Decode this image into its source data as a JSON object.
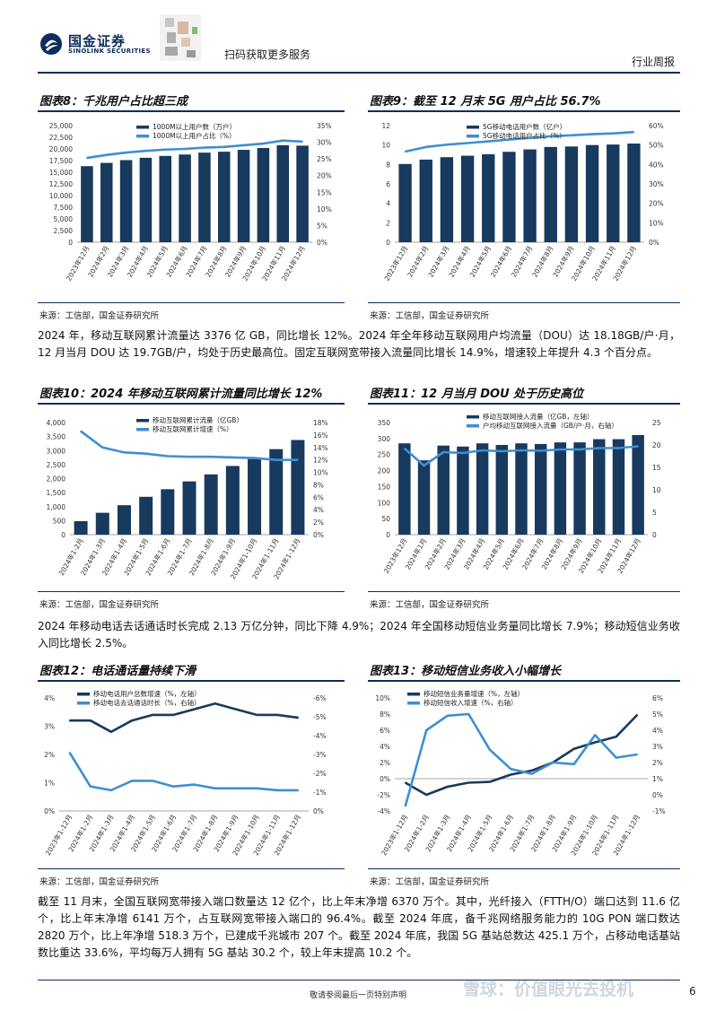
{
  "header": {
    "logo_cn": "国金证券",
    "logo_en": "SINOLINK SECURITIES",
    "qr_text": "扫码获取更多服务",
    "report_type": "行业周报"
  },
  "figures": {
    "fig8": {
      "title": "图表8：千兆用户占比超三成",
      "source": "来源：工信部，国金证券研究所"
    },
    "fig9": {
      "title": "图表9：截至 12 月末 5G 用户占比 56.7%",
      "source": "来源：工信部，国金证券研究所"
    },
    "fig10": {
      "title": "图表10：2024 年移动互联网累计流量同比增长 12%",
      "source": "来源：工信部，国金证券研究所"
    },
    "fig11": {
      "title": "图表11：12 月当月 DOU 处于历史高位",
      "source": "来源：工信部，国金证券研究所"
    },
    "fig12": {
      "title": "图表12：电话通话量持续下滑",
      "source": "来源：工信部，国金证券研究所"
    },
    "fig13": {
      "title": "图表13：移动短信业务收入小幅增长",
      "source": "来源：工信部，国金证券研究所"
    }
  },
  "paragraphs": {
    "p1": "2024 年，移动互联网累计流量达 3376 亿 GB，同比增长 12%。2024 年全年移动互联网用户均流量（DOU）达 18.18GB/户·月，12 月当月 DOU 达 19.7GB/户，均处于历史最高位。固定互联网宽带接入流量同比增长 14.9%，增速较上年提升 4.3 个百分点。",
    "p2": "2024 年移动电话去话通话时长完成 2.13 万亿分钟，同比下降 4.9%；2024 年全国移动短信业务量同比增长 7.9%；移动短信业务收入同比增长 2.5%。",
    "p3": "截至 11 月末，全国互联网宽带接入端口数量达 12 亿个，比上年末净增 6370 万个。其中，光纤接入（FTTH/O）端口达到 11.6 亿个，比上年末净增 6141 万个，占互联网宽带接入端口的 96.4%。截至 2024 年底，备千兆网络服务能力的 10G PON 端口数达 2820 万个，比上年净增 518.3 万个，已建成千兆城市 207 个。截至 2024 年底，我国 5G 基站总数达 425.1 万个，占移动电话基站数比重达 33.6%，平均每万人拥有 5G 基站 30.2 个，较上年末提高 10.2 个。"
  },
  "footer": {
    "disclaimer": "敬请参阅最后一页特别声明",
    "watermark": "雪球：价值眼光去投机",
    "page": "6"
  },
  "colors": {
    "navy": "#173a5e",
    "blue": "#3f8fd2",
    "rule": "#0d2d5c"
  },
  "chart_data": [
    {
      "id": "fig8",
      "type": "bar+line",
      "categories": [
        "2023年12月",
        "2024年2月",
        "2024年3月",
        "2024年4月",
        "2024年5月",
        "2024年6月",
        "2024年7月",
        "2024年8月",
        "2024年9月",
        "2024年10月",
        "2024年11月",
        "2024年12月"
      ],
      "series": [
        {
          "name": "1000M以上用户数（万户）",
          "type": "bar",
          "axis": "left",
          "values": [
            16300,
            17000,
            17600,
            18100,
            18500,
            18800,
            19200,
            19400,
            19800,
            20200,
            20800,
            20700
          ]
        },
        {
          "name": "1000M以上用户占比（%）",
          "type": "line",
          "axis": "right",
          "values": [
            25.3,
            26.2,
            26.9,
            27.4,
            27.8,
            28.0,
            28.4,
            28.6,
            29.1,
            29.6,
            30.5,
            30.2
          ]
        }
      ],
      "yleft": {
        "min": 0,
        "max": 25000,
        "ticks": [
          "0",
          "2,500",
          "5,000",
          "7,500",
          "10,000",
          "12,500",
          "15,000",
          "17,500",
          "20,000",
          "22,500",
          "25,000"
        ]
      },
      "yright": {
        "min": 0,
        "max": 35,
        "ticks": [
          "0%",
          "5%",
          "10%",
          "15%",
          "20%",
          "25%",
          "30%",
          "35%"
        ]
      }
    },
    {
      "id": "fig9",
      "type": "bar+line",
      "categories": [
        "2023年12月",
        "2024年2月",
        "2024年3月",
        "2024年4月",
        "2024年5月",
        "2024年6月",
        "2024年7月",
        "2024年8月",
        "2024年9月",
        "2024年10月",
        "2024年11月",
        "2024年12月"
      ],
      "series": [
        {
          "name": "5G移动电话用户数（亿户）",
          "type": "bar",
          "axis": "left",
          "values": [
            8.05,
            8.5,
            8.75,
            8.9,
            9.05,
            9.3,
            9.55,
            9.8,
            9.85,
            10.0,
            10.05,
            10.15
          ]
        },
        {
          "name": "5G移动电话用户占比（%）",
          "type": "line",
          "axis": "right",
          "values": [
            46.6,
            49.0,
            50.2,
            51.0,
            51.9,
            52.8,
            53.7,
            54.5,
            55.0,
            55.6,
            56.0,
            56.7
          ]
        }
      ],
      "yleft": {
        "min": 0,
        "max": 12,
        "ticks": [
          "0",
          "2",
          "4",
          "6",
          "8",
          "10",
          "12"
        ]
      },
      "yright": {
        "min": 0,
        "max": 60,
        "ticks": [
          "0%",
          "10%",
          "20%",
          "30%",
          "40%",
          "50%",
          "60%"
        ]
      }
    },
    {
      "id": "fig10",
      "type": "bar+line",
      "categories": [
        "2024年1-2月",
        "2024年1-3月",
        "2024年1-4月",
        "2024年1-5月",
        "2024年1-6月",
        "2024年1-7月",
        "2024年1-8月",
        "2024年1-9月",
        "2024年1-10月",
        "2024年1-11月",
        "2024年1-12月"
      ],
      "series": [
        {
          "name": "移动互联网累计流量（亿GB）",
          "type": "bar",
          "axis": "left",
          "values": [
            480,
            780,
            1050,
            1350,
            1620,
            1900,
            2150,
            2450,
            2700,
            3050,
            3376
          ]
        },
        {
          "name": "移动互联网累计增速（%）",
          "type": "line",
          "axis": "right",
          "values": [
            16.6,
            14.0,
            13.2,
            13.0,
            12.6,
            12.5,
            12.5,
            12.4,
            12.3,
            12.0,
            12.0
          ]
        }
      ],
      "yleft": {
        "min": 0,
        "max": 4000,
        "ticks": [
          "0",
          "500",
          "1,000",
          "1,500",
          "2,000",
          "2,500",
          "3,000",
          "3,500",
          "4,000"
        ]
      },
      "yright": {
        "min": 0,
        "max": 18,
        "ticks": [
          "0%",
          "2%",
          "4%",
          "6%",
          "8%",
          "10%",
          "12%",
          "14%",
          "16%",
          "18%"
        ]
      }
    },
    {
      "id": "fig11",
      "type": "bar+line",
      "categories": [
        "2023年12月",
        "2024年1月",
        "2024年2月",
        "2024年3月",
        "2024年4月",
        "2024年5月",
        "2024年6月",
        "2024年7月",
        "2024年8月",
        "2024年9月",
        "2024年10月",
        "2024年11月",
        "2024年12月"
      ],
      "series": [
        {
          "name": "移动互联网接入流量（亿GB，左轴）",
          "type": "bar",
          "axis": "left",
          "values": [
            285,
            232,
            278,
            275,
            285,
            280,
            285,
            283,
            288,
            288,
            298,
            298,
            311
          ]
        },
        {
          "name": "户均移动互联网接入流量（GB/户·月，右轴）",
          "type": "line",
          "axis": "right",
          "values": [
            19.2,
            15.4,
            18.4,
            18.2,
            18.8,
            18.6,
            18.8,
            18.7,
            19.0,
            19.0,
            19.3,
            19.3,
            19.7
          ]
        }
      ],
      "yleft": {
        "min": 0,
        "max": 350,
        "ticks": [
          "0",
          "50",
          "100",
          "150",
          "200",
          "250",
          "300",
          "350"
        ]
      },
      "yright": {
        "min": 0,
        "max": 25,
        "ticks": [
          "0",
          "5",
          "10",
          "15",
          "20",
          "25"
        ]
      }
    },
    {
      "id": "fig12",
      "type": "line",
      "categories": [
        "2023年1-12月",
        "2024年1-2月",
        "2024年1-3月",
        "2024年1-4月",
        "2024年1-5月",
        "2024年1-6月",
        "2024年1-7月",
        "2024年1-8月",
        "2024年1-9月",
        "2024年1-10月",
        "2024年1-11月",
        "2024年1-12月"
      ],
      "series": [
        {
          "name": "移动电话用户总数增速（%，左轴）",
          "axis": "left",
          "values": [
            3.2,
            3.2,
            2.8,
            3.2,
            3.4,
            3.4,
            3.6,
            3.8,
            3.6,
            3.4,
            3.4,
            3.3
          ]
        },
        {
          "name": "移动电话去话通话时长（%，右轴）",
          "axis": "right",
          "values": [
            -2.9,
            -4.7,
            -4.9,
            -4.4,
            -4.4,
            -4.7,
            -4.6,
            -4.8,
            -4.8,
            -4.8,
            -4.9,
            -4.9
          ]
        }
      ],
      "yleft": {
        "min": 0,
        "max": 4,
        "ticks": [
          "0%",
          "1%",
          "2%",
          "3%",
          "4%"
        ]
      },
      "yright": {
        "min": -6,
        "max": 0,
        "ticks": [
          "0%",
          "-1%",
          "-2%",
          "-3%",
          "-4%",
          "-5%",
          "-6%"
        ]
      }
    },
    {
      "id": "fig13",
      "type": "line",
      "categories": [
        "2023年1-12月",
        "2024年1-2月",
        "2024年1-3月",
        "2024年1-4月",
        "2024年1-5月",
        "2024年1-6月",
        "2024年1-7月",
        "2024年1-8月",
        "2024年1-9月",
        "2024年1-10月",
        "2024年1-11月",
        "2024年1-12月"
      ],
      "series": [
        {
          "name": "移动短信业务量增速（%，左轴）",
          "axis": "left",
          "values": [
            -0.5,
            -2.0,
            -1.0,
            -0.5,
            -0.4,
            0.5,
            1.0,
            2.0,
            3.7,
            4.5,
            5.2,
            7.9
          ]
        },
        {
          "name": "移动短信收入增速（%，右轴）",
          "axis": "right",
          "values": [
            -0.7,
            4.0,
            4.9,
            5.0,
            2.8,
            1.6,
            1.3,
            2.0,
            1.9,
            3.7,
            2.3,
            2.5
          ]
        }
      ],
      "yleft": {
        "min": -4,
        "max": 10,
        "ticks": [
          "-4%",
          "-2%",
          "0%",
          "2%",
          "4%",
          "6%",
          "8%",
          "10%"
        ]
      },
      "yright": {
        "min": -1,
        "max": 6,
        "ticks": [
          "-1%",
          "0%",
          "1%",
          "2%",
          "3%",
          "4%",
          "5%",
          "6%"
        ]
      }
    }
  ]
}
